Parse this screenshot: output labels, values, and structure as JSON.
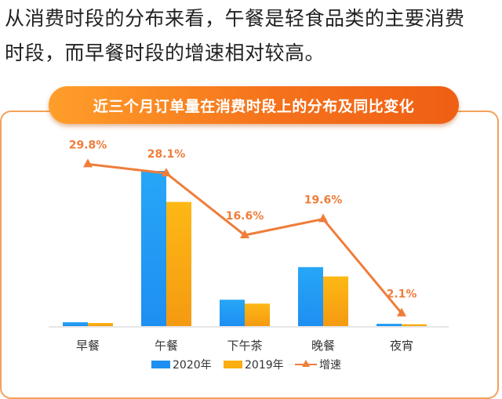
{
  "intro": {
    "line1": "从消费时段的分布来看，午餐是轻食品类的主要消费",
    "line2": "时段，而早餐时段的增速相对较高。"
  },
  "colors": {
    "bar_2020": "#1e8ff2",
    "bar_2019": "#fbae10",
    "growth_line": "#ef7d3a",
    "accent": "#f5721b"
  },
  "chart_data": {
    "type": "bar",
    "title": "近三个月订单量在消费时段上的分布及同比变化",
    "categories": [
      "早餐",
      "午餐",
      "下午茶",
      "晚餐",
      "夜宵"
    ],
    "series": [
      {
        "name": "2020年",
        "kind": "bar",
        "values": [
          2.5,
          100,
          17,
          38,
          1.5
        ]
      },
      {
        "name": "2019年",
        "kind": "bar",
        "values": [
          2,
          80,
          14.5,
          32,
          1.2
        ]
      },
      {
        "name": "增速",
        "kind": "line",
        "values": [
          29.8,
          28.1,
          16.6,
          19.6,
          2.1
        ],
        "labels": [
          "29.8%",
          "28.1%",
          "16.6%",
          "19.6%",
          "2.1%"
        ]
      }
    ],
    "bar_axis": {
      "ylim": [
        0,
        100
      ],
      "visible": false
    },
    "line_axis": {
      "ylim": [
        0,
        30
      ],
      "visible": false
    },
    "grid": false,
    "legend": {
      "position": "bottom",
      "items": [
        "2020年",
        "2019年",
        "增速"
      ]
    }
  }
}
